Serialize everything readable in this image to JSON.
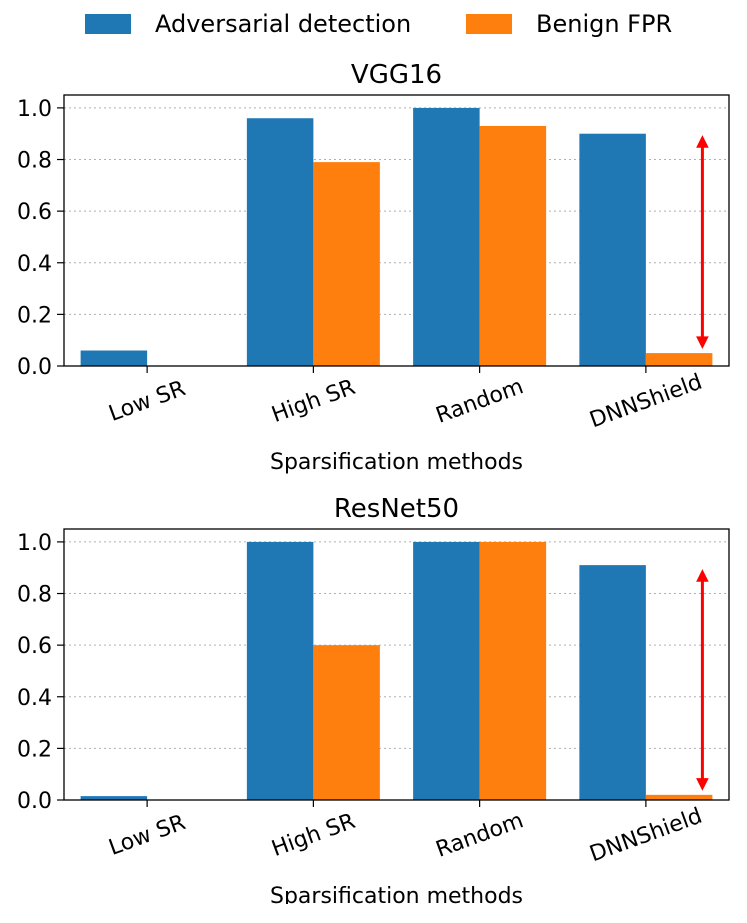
{
  "legend": {
    "items": [
      {
        "label": "Adversarial detection",
        "color": "#1f77b4"
      },
      {
        "label": "Benign FPR",
        "color": "#ff7f0e"
      }
    ]
  },
  "chart_data": [
    {
      "type": "bar",
      "title": "VGG16",
      "xlabel": "Sparsification methods",
      "ylabel": "",
      "ylim": [
        0,
        1.05
      ],
      "yticks": [
        "0.0",
        "0.2",
        "0.4",
        "0.6",
        "0.8",
        "1.0"
      ],
      "grid": "horizontal dotted",
      "categories": [
        "Low SR",
        "High SR",
        "Random",
        "DNNShield"
      ],
      "series": [
        {
          "name": "Adversarial detection",
          "color": "#1f77b4",
          "values": [
            0.06,
            0.96,
            1.0,
            0.9
          ]
        },
        {
          "name": "Benign FPR",
          "color": "#ff7f0e",
          "values": [
            0.0,
            0.79,
            0.93,
            0.05
          ]
        }
      ],
      "annotation": {
        "type": "double-arrow",
        "color": "#ff0000",
        "category": "DNNShield",
        "y_from": 0.07,
        "y_to": 0.89
      }
    },
    {
      "type": "bar",
      "title": "ResNet50",
      "xlabel": "Sparsification methods",
      "ylabel": "",
      "ylim": [
        0,
        1.05
      ],
      "yticks": [
        "0.0",
        "0.2",
        "0.4",
        "0.6",
        "0.8",
        "1.0"
      ],
      "grid": "horizontal dotted",
      "categories": [
        "Low SR",
        "High SR",
        "Random",
        "DNNShield"
      ],
      "series": [
        {
          "name": "Adversarial detection",
          "color": "#1f77b4",
          "values": [
            0.015,
            1.0,
            1.0,
            0.91
          ]
        },
        {
          "name": "Benign FPR",
          "color": "#ff7f0e",
          "values": [
            0.0,
            0.6,
            1.0,
            0.02
          ]
        }
      ],
      "annotation": {
        "type": "double-arrow",
        "color": "#ff0000",
        "category": "DNNShield",
        "y_from": 0.04,
        "y_to": 0.89
      }
    }
  ]
}
